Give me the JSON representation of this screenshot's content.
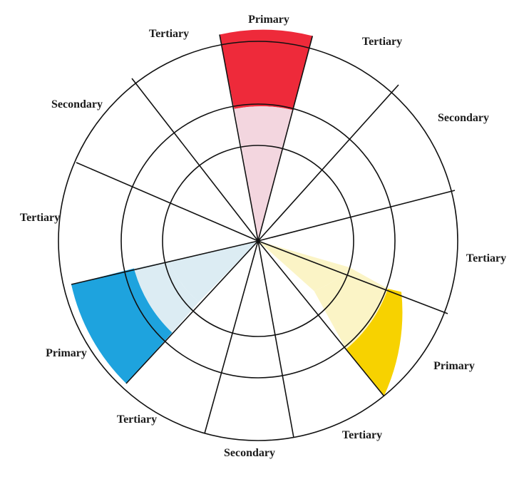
{
  "wheel": {
    "labels": {
      "top": "Primary",
      "top_right": "Tertiary",
      "right_upper": "Secondary",
      "right": "Tertiary",
      "bottom_right": "Primary",
      "bottom_right_lower": "Tertiary",
      "bottom": "Secondary",
      "bottom_left": "Tertiary",
      "left_lower": "Primary",
      "left": "Tertiary",
      "left_upper": "Secondary",
      "top_left": "Tertiary"
    },
    "colors": {
      "red": "#ee2a3a",
      "red_tint": "#f3d6df",
      "blue": "#1ea3de",
      "blue_tint": "#dcecf3",
      "yellow": "#f7d200",
      "yellow_tint": "#fbf4c6",
      "line": "#111111"
    }
  }
}
